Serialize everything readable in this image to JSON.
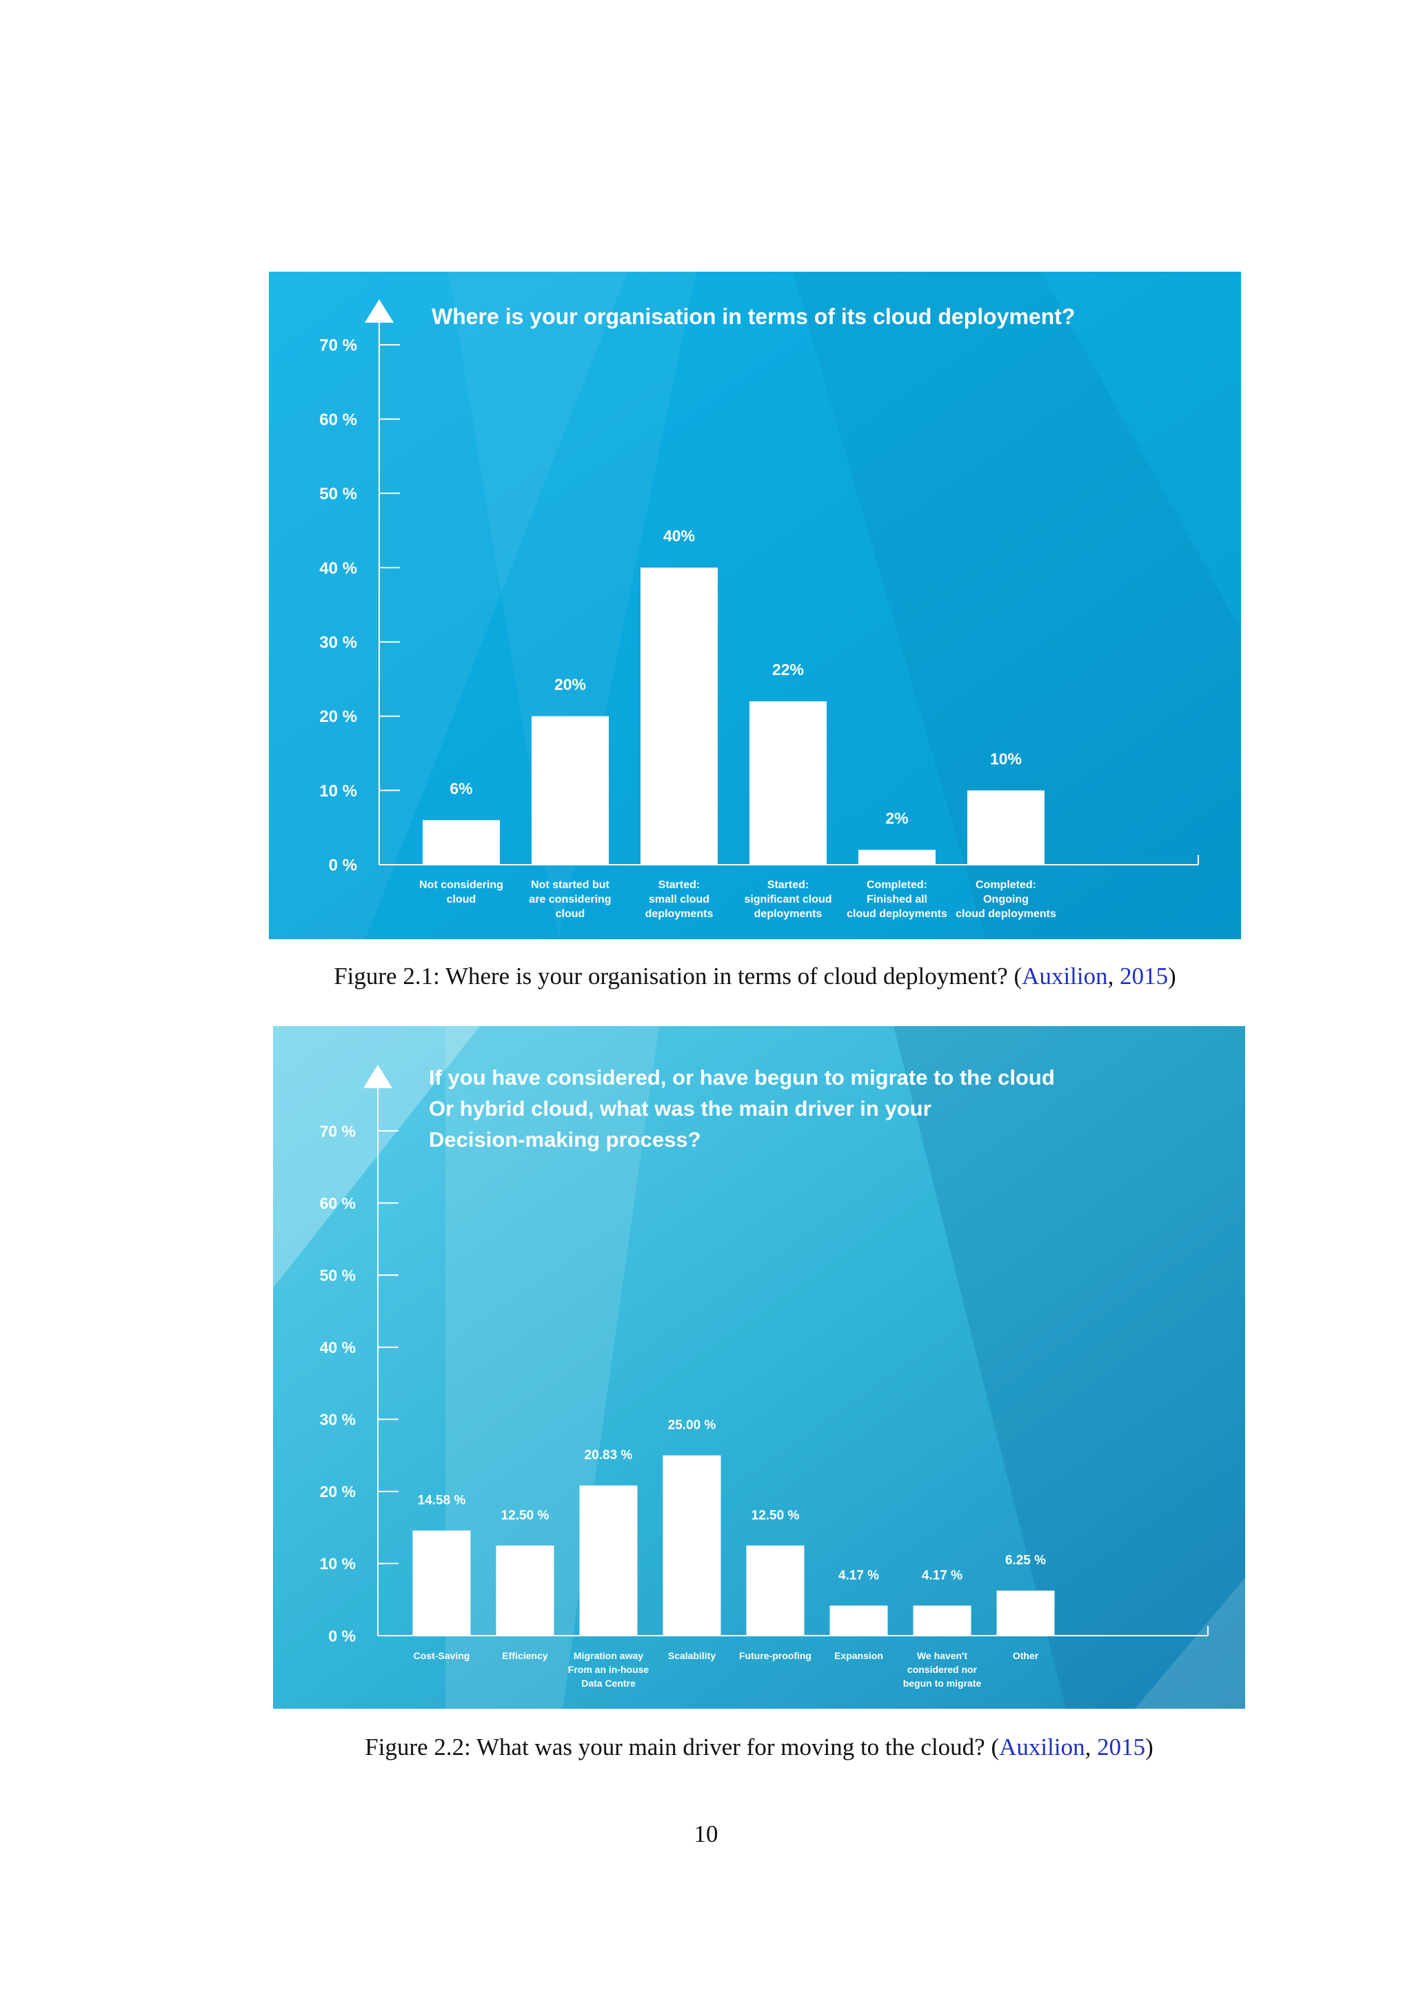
{
  "figures": [
    {
      "caption": {
        "label": "Figure 2.1:",
        "text": "Where is your organisation in terms of cloud deployment?",
        "cite_open": "(",
        "cite_author": "Auxilion",
        "cite_sep": ", ",
        "cite_year": "2015",
        "cite_close": ")"
      }
    },
    {
      "caption": {
        "label": "Figure 2.2:",
        "text": "What was your main driver for moving to the cloud?",
        "cite_open": "(",
        "cite_author": "Auxilion",
        "cite_sep": ", ",
        "cite_year": "2015",
        "cite_close": ")"
      }
    }
  ],
  "page_number": "10",
  "colors": {
    "link": "#1f2fc4",
    "chart1_bg": "#0aa6dc",
    "chart2_bg": "#36b6d8",
    "bar": "#ffffff"
  },
  "chart_data": [
    {
      "type": "bar",
      "title": "Where is your organisation in terms of its cloud deployment?",
      "title_lines": [
        "Where is your organisation in terms of its cloud deployment?"
      ],
      "categories": [
        [
          "Not considering",
          "cloud"
        ],
        [
          "Not started but",
          "are considering",
          "cloud"
        ],
        [
          "Started:",
          "small cloud",
          "deployments"
        ],
        [
          "Started:",
          "significant cloud",
          "deployments"
        ],
        [
          "Completed:",
          "Finished all",
          "cloud deployments"
        ],
        [
          "Completed:",
          "Ongoing",
          "cloud deployments"
        ]
      ],
      "values": [
        6,
        20,
        40,
        22,
        2,
        10
      ],
      "value_labels": [
        "6%",
        "20%",
        "40%",
        "22%",
        "2%",
        "10%"
      ],
      "y_ticks": [
        0,
        10,
        20,
        30,
        40,
        50,
        60,
        70
      ],
      "y_tick_labels": [
        "0 %",
        "10 %",
        "20 %",
        "30 %",
        "40 %",
        "50 %",
        "60 %",
        "70 %"
      ],
      "ylim": [
        0,
        70
      ],
      "grid": false
    },
    {
      "type": "bar",
      "title": "If you have considered, or have begun to migrate to the cloud Or hybrid cloud, what was the main driver in your Decision-making process?",
      "title_lines": [
        "If you have considered, or have begun to migrate to the cloud",
        "Or hybrid cloud, what was the main driver in your",
        "Decision-making process?"
      ],
      "categories": [
        [
          "Cost-Saving"
        ],
        [
          "Efficiency"
        ],
        [
          "Migration away",
          "From an in-house",
          "Data Centre"
        ],
        [
          "Scalability"
        ],
        [
          "Future-proofing"
        ],
        [
          "Expansion"
        ],
        [
          "We haven't",
          "considered nor",
          "begun to migrate"
        ],
        [
          "Other"
        ]
      ],
      "values": [
        14.58,
        12.5,
        20.83,
        25.0,
        12.5,
        4.17,
        4.17,
        6.25
      ],
      "value_labels": [
        "14.58 %",
        "12.50 %",
        "20.83 %",
        "25.00 %",
        "12.50 %",
        "4.17 %",
        "4.17 %",
        "6.25 %"
      ],
      "y_ticks": [
        0,
        10,
        20,
        30,
        40,
        50,
        60,
        70
      ],
      "y_tick_labels": [
        "0 %",
        "10 %",
        "20 %",
        "30 %",
        "40 %",
        "50 %",
        "60 %",
        "70 %"
      ],
      "ylim": [
        0,
        70
      ],
      "grid": false
    }
  ]
}
